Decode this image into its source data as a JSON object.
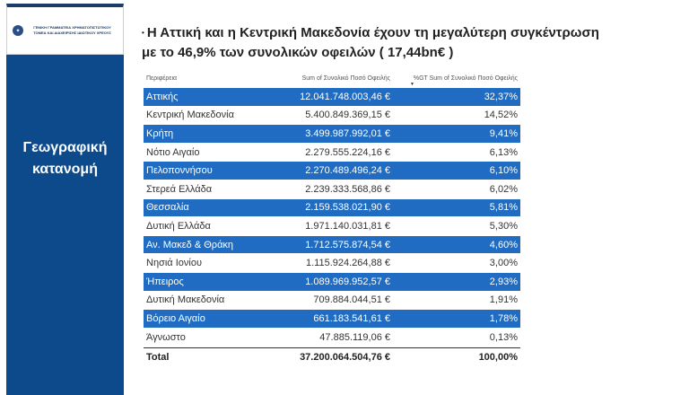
{
  "logo": {
    "text": "ΓΕΝΙΚΗ ΓΡΑΜΜΑΤΕΙΑ ΧΡΗΜΑΤΟΠΙΣΤΩΤΙΚΟΥ ΤΟΜΕΑ ΚΑΙ ΔΙΑΧΕΙΡΙΣΗΣ ΙΔΙΩΤΙΚΟΥ ΧΡΕΟΥΣ"
  },
  "sidebar": {
    "title_line1": "Γεωγραφική",
    "title_line2": "κατανομή"
  },
  "headline": {
    "bullet": "•",
    "line1": "Η Αττική και η Κεντρική Μακεδονία  έχουν τη μεγαλύτερη συγκέντρωση",
    "line2": "με το 46,9% των συνολικών οφειλών ( 17,44bn€ )"
  },
  "table": {
    "headers": [
      "Περιφέρεια",
      "Sum of Συνολικό Ποσό Οφειλής",
      "%GT Sum of Συνολικό Ποσό Οφειλής"
    ],
    "rows": [
      [
        "Αττικής",
        "12.041.748.003,46 €",
        "32,37%"
      ],
      [
        "Κεντρική Μακεδονία",
        "5.400.849.369,15 €",
        "14,52%"
      ],
      [
        "Κρήτη",
        "3.499.987.992,01 €",
        "9,41%"
      ],
      [
        "Νότιο Αιγαίο",
        "2.279.555.224,16 €",
        "6,13%"
      ],
      [
        "Πελοποννήσου",
        "2.270.489.496,24 €",
        "6,10%"
      ],
      [
        "Στερεά Ελλάδα",
        "2.239.333.568,86 €",
        "6,02%"
      ],
      [
        "Θεσσαλία",
        "2.159.538.021,90 €",
        "5,81%"
      ],
      [
        "Δυτική Ελλάδα",
        "1.971.140.031,81 €",
        "5,30%"
      ],
      [
        "Αν. Μακεδ & Θράκη",
        "1.712.575.874,54 €",
        "4,60%"
      ],
      [
        "Νησιά Ιονίου",
        "1.115.924.264,88 €",
        "3,00%"
      ],
      [
        "Ήπειρος",
        "1.089.969.952,57 €",
        "2,93%"
      ],
      [
        "Δυτική Μακεδονία",
        "709.884.044,51 €",
        "1,91%"
      ],
      [
        "Βόρειο Αιγαίο",
        "661.183.541,61 €",
        "1,78%"
      ],
      [
        "Άγνωστο",
        "47.885.119,06 €",
        "0,13%"
      ]
    ],
    "total": [
      "Total",
      "37.200.064.504,76 €",
      "100,00%"
    ]
  }
}
